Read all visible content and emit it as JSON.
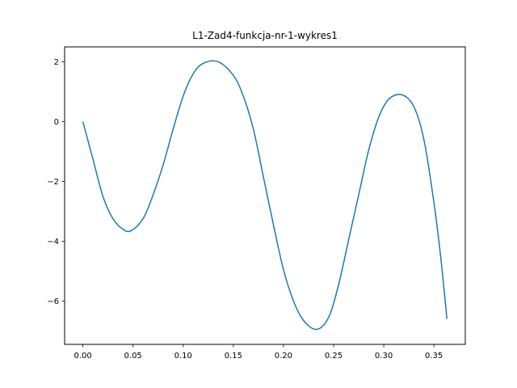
{
  "chart_data": {
    "type": "line",
    "title": "L1-Zad4-funkcja-nr-1-wykres1",
    "xlabel": "",
    "ylabel": "",
    "xlim": [
      -0.0182,
      0.3813
    ],
    "ylim": [
      -7.45,
      2.5
    ],
    "x_ticks": [
      0.0,
      0.05,
      0.1,
      0.15,
      0.2,
      0.25,
      0.3,
      0.35
    ],
    "x_tick_labels": [
      "0.00",
      "0.05",
      "0.10",
      "0.15",
      "0.20",
      "0.25",
      "0.30",
      "0.35"
    ],
    "y_ticks": [
      2,
      0,
      -2,
      -4,
      -6
    ],
    "y_tick_labels": [
      "2",
      "0",
      "−2",
      "−4",
      "−6"
    ],
    "grid": false,
    "color": "#1f77b4",
    "series": [
      {
        "x": [
          0.0,
          0.01,
          0.02,
          0.03,
          0.04,
          0.048,
          0.06,
          0.07,
          0.08,
          0.09,
          0.1,
          0.11,
          0.12,
          0.135,
          0.15,
          0.16,
          0.17,
          0.18,
          0.19,
          0.2,
          0.21,
          0.22,
          0.233,
          0.245,
          0.255,
          0.265,
          0.275,
          0.285,
          0.295,
          0.305,
          0.318,
          0.33,
          0.34,
          0.35,
          0.357,
          0.363
        ],
        "y": [
          0.0,
          -1.25,
          -2.5,
          -3.25,
          -3.6,
          -3.65,
          -3.25,
          -2.45,
          -1.45,
          -0.25,
          0.85,
          1.6,
          1.95,
          2.0,
          1.55,
          0.85,
          -0.25,
          -1.85,
          -3.45,
          -4.95,
          -6.0,
          -6.65,
          -6.95,
          -6.55,
          -5.45,
          -3.95,
          -2.45,
          -0.95,
          0.15,
          0.75,
          0.9,
          0.5,
          -0.6,
          -2.7,
          -4.6,
          -6.6
        ]
      }
    ]
  }
}
